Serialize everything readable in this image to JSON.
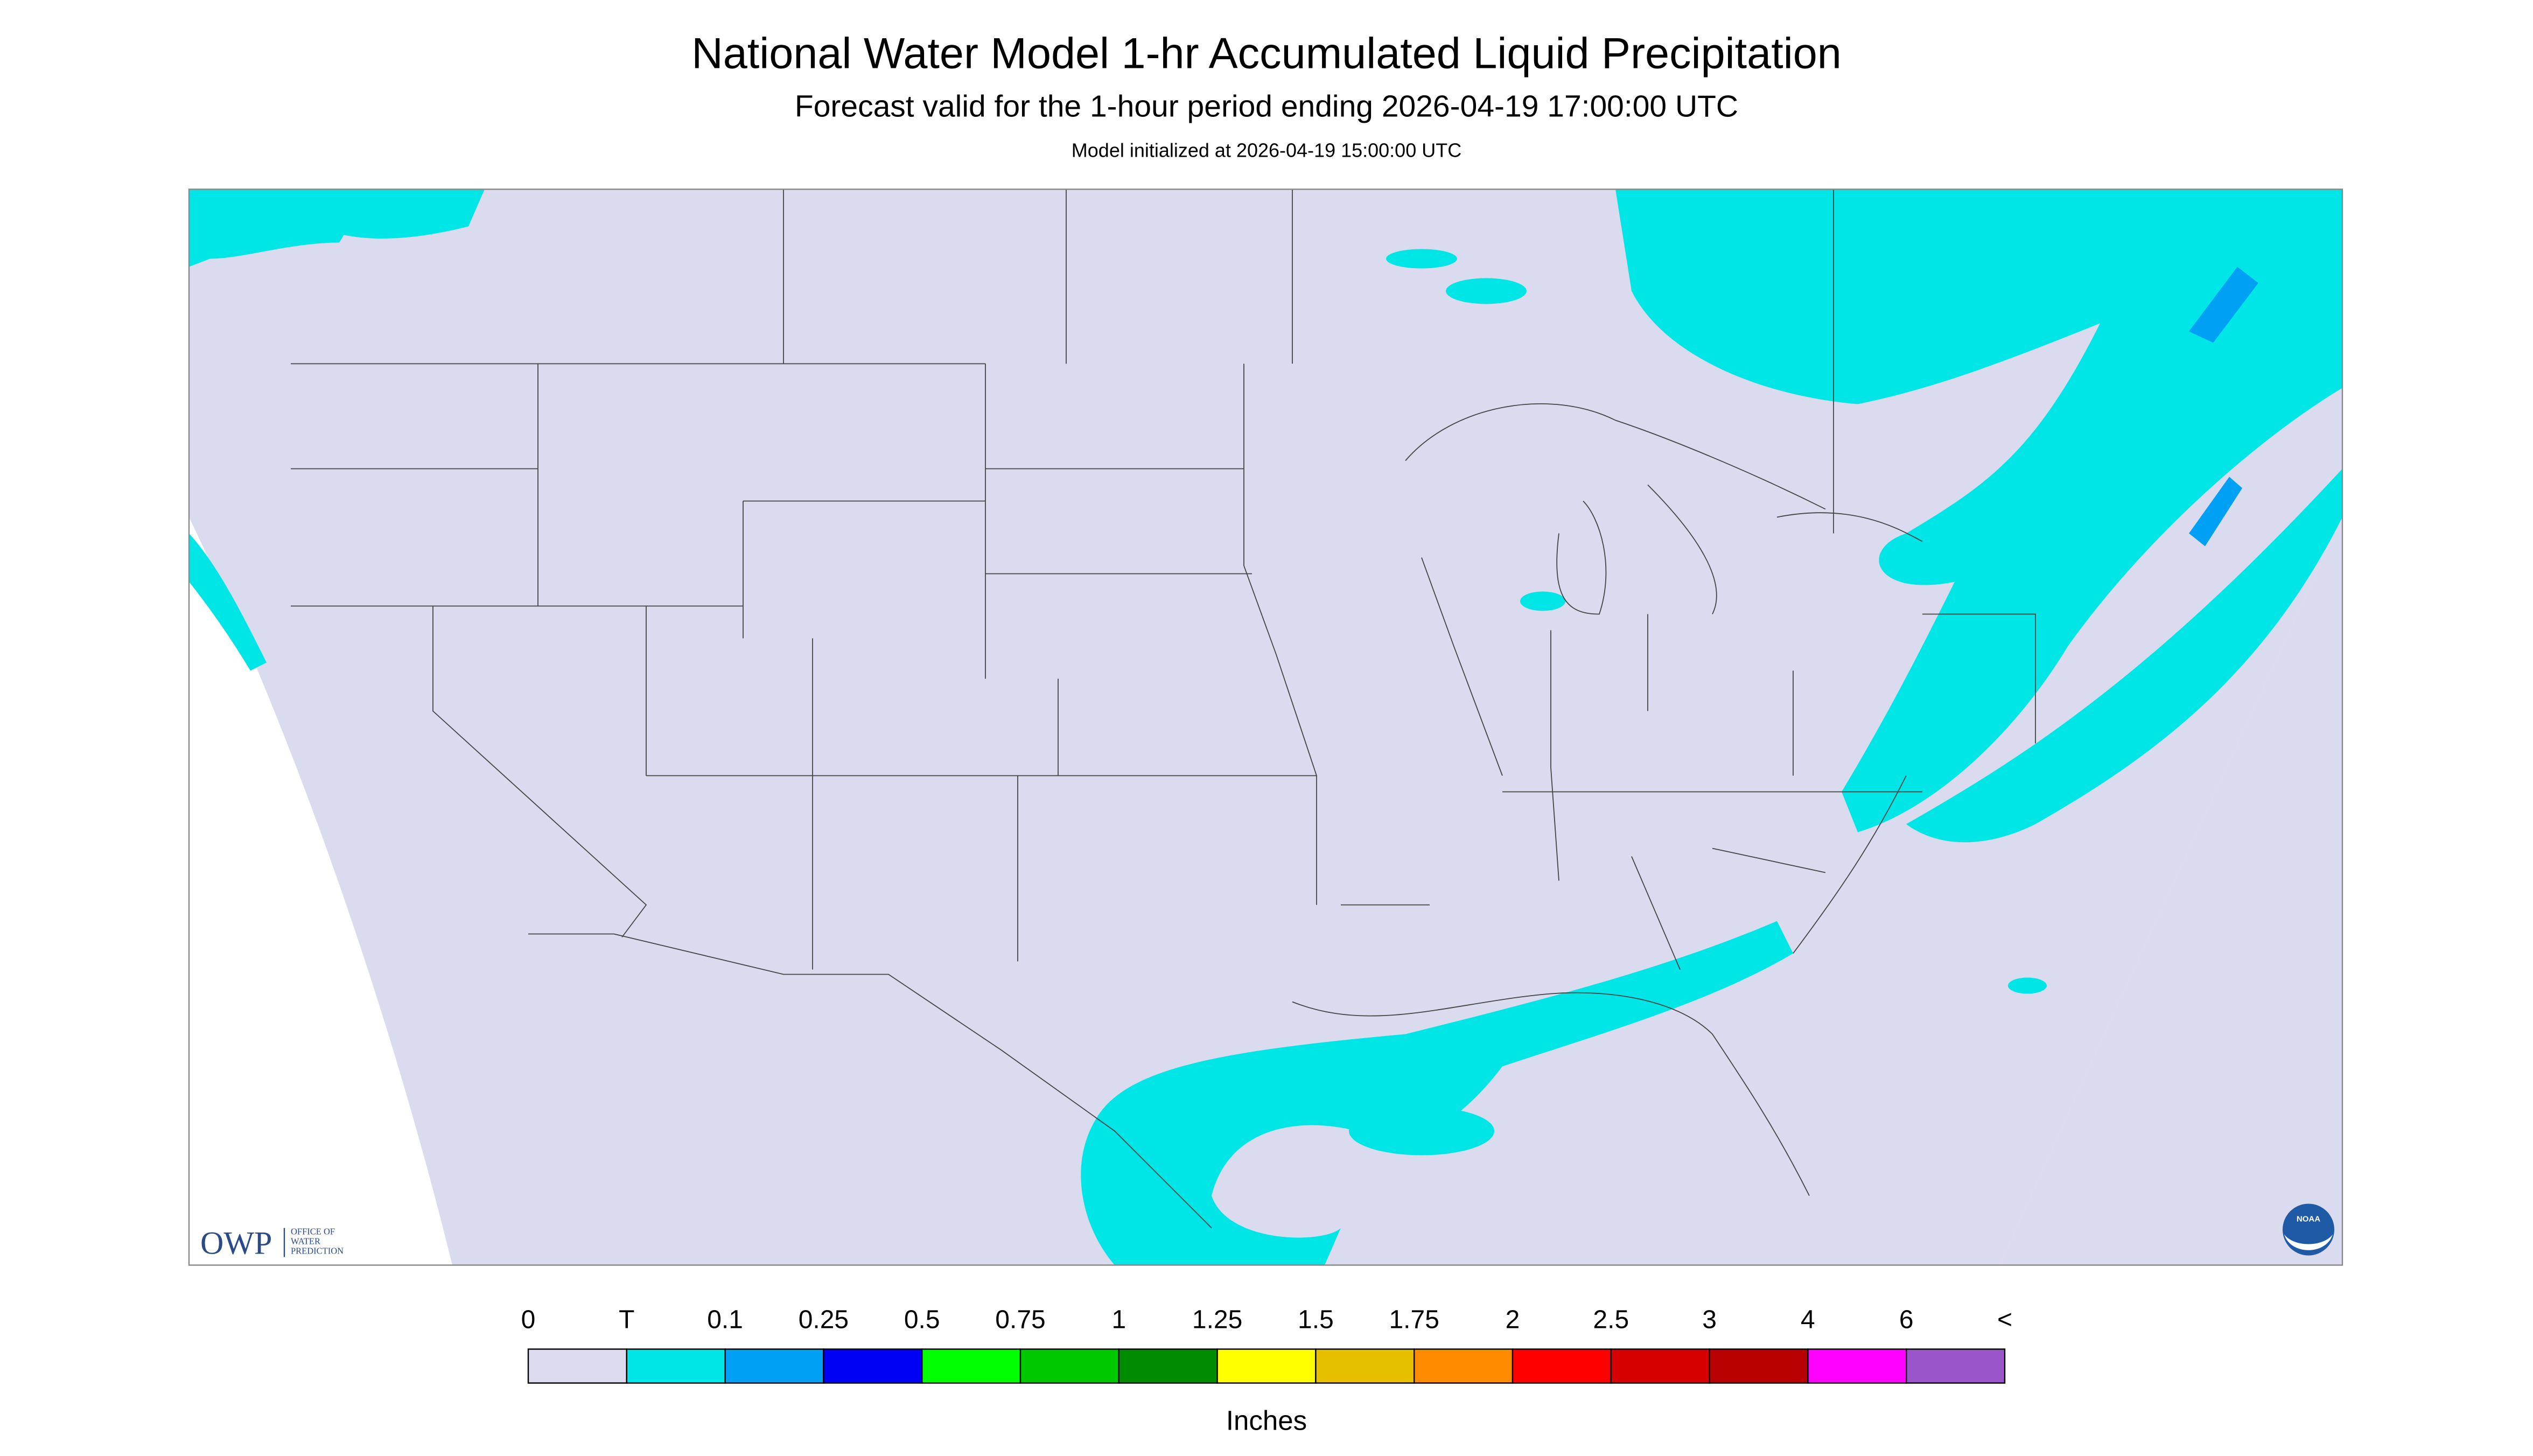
{
  "header": {
    "title": "National Water Model 1-hr Accumulated Liquid Precipitation",
    "subtitle": "Forecast valid for the 1-hour period ending 2026-04-19 17:00:00 UTC",
    "note": "Model initialized at 2026-04-19 15:00:00 UTC"
  },
  "logo": {
    "name": "OWP",
    "lines": [
      "OFFICE OF",
      "WATER",
      "PREDICTION"
    ],
    "badge": "NOAA"
  },
  "legend": {
    "labels": [
      "0",
      "T",
      "0.1",
      "0.25",
      "0.5",
      "0.75",
      "1",
      "1.25",
      "1.5",
      "1.75",
      "2",
      "2.5",
      "3",
      "4",
      "6",
      "<"
    ],
    "colors": [
      "#dcdcee",
      "#00e6e6",
      "#00a0f5",
      "#0000f5",
      "#00ff00",
      "#00c800",
      "#008c00",
      "#ffff00",
      "#e6c000",
      "#ff8c00",
      "#ff0000",
      "#d70000",
      "#b90000",
      "#ff00ff",
      "#9955c9"
    ],
    "unit": "Inches"
  }
}
